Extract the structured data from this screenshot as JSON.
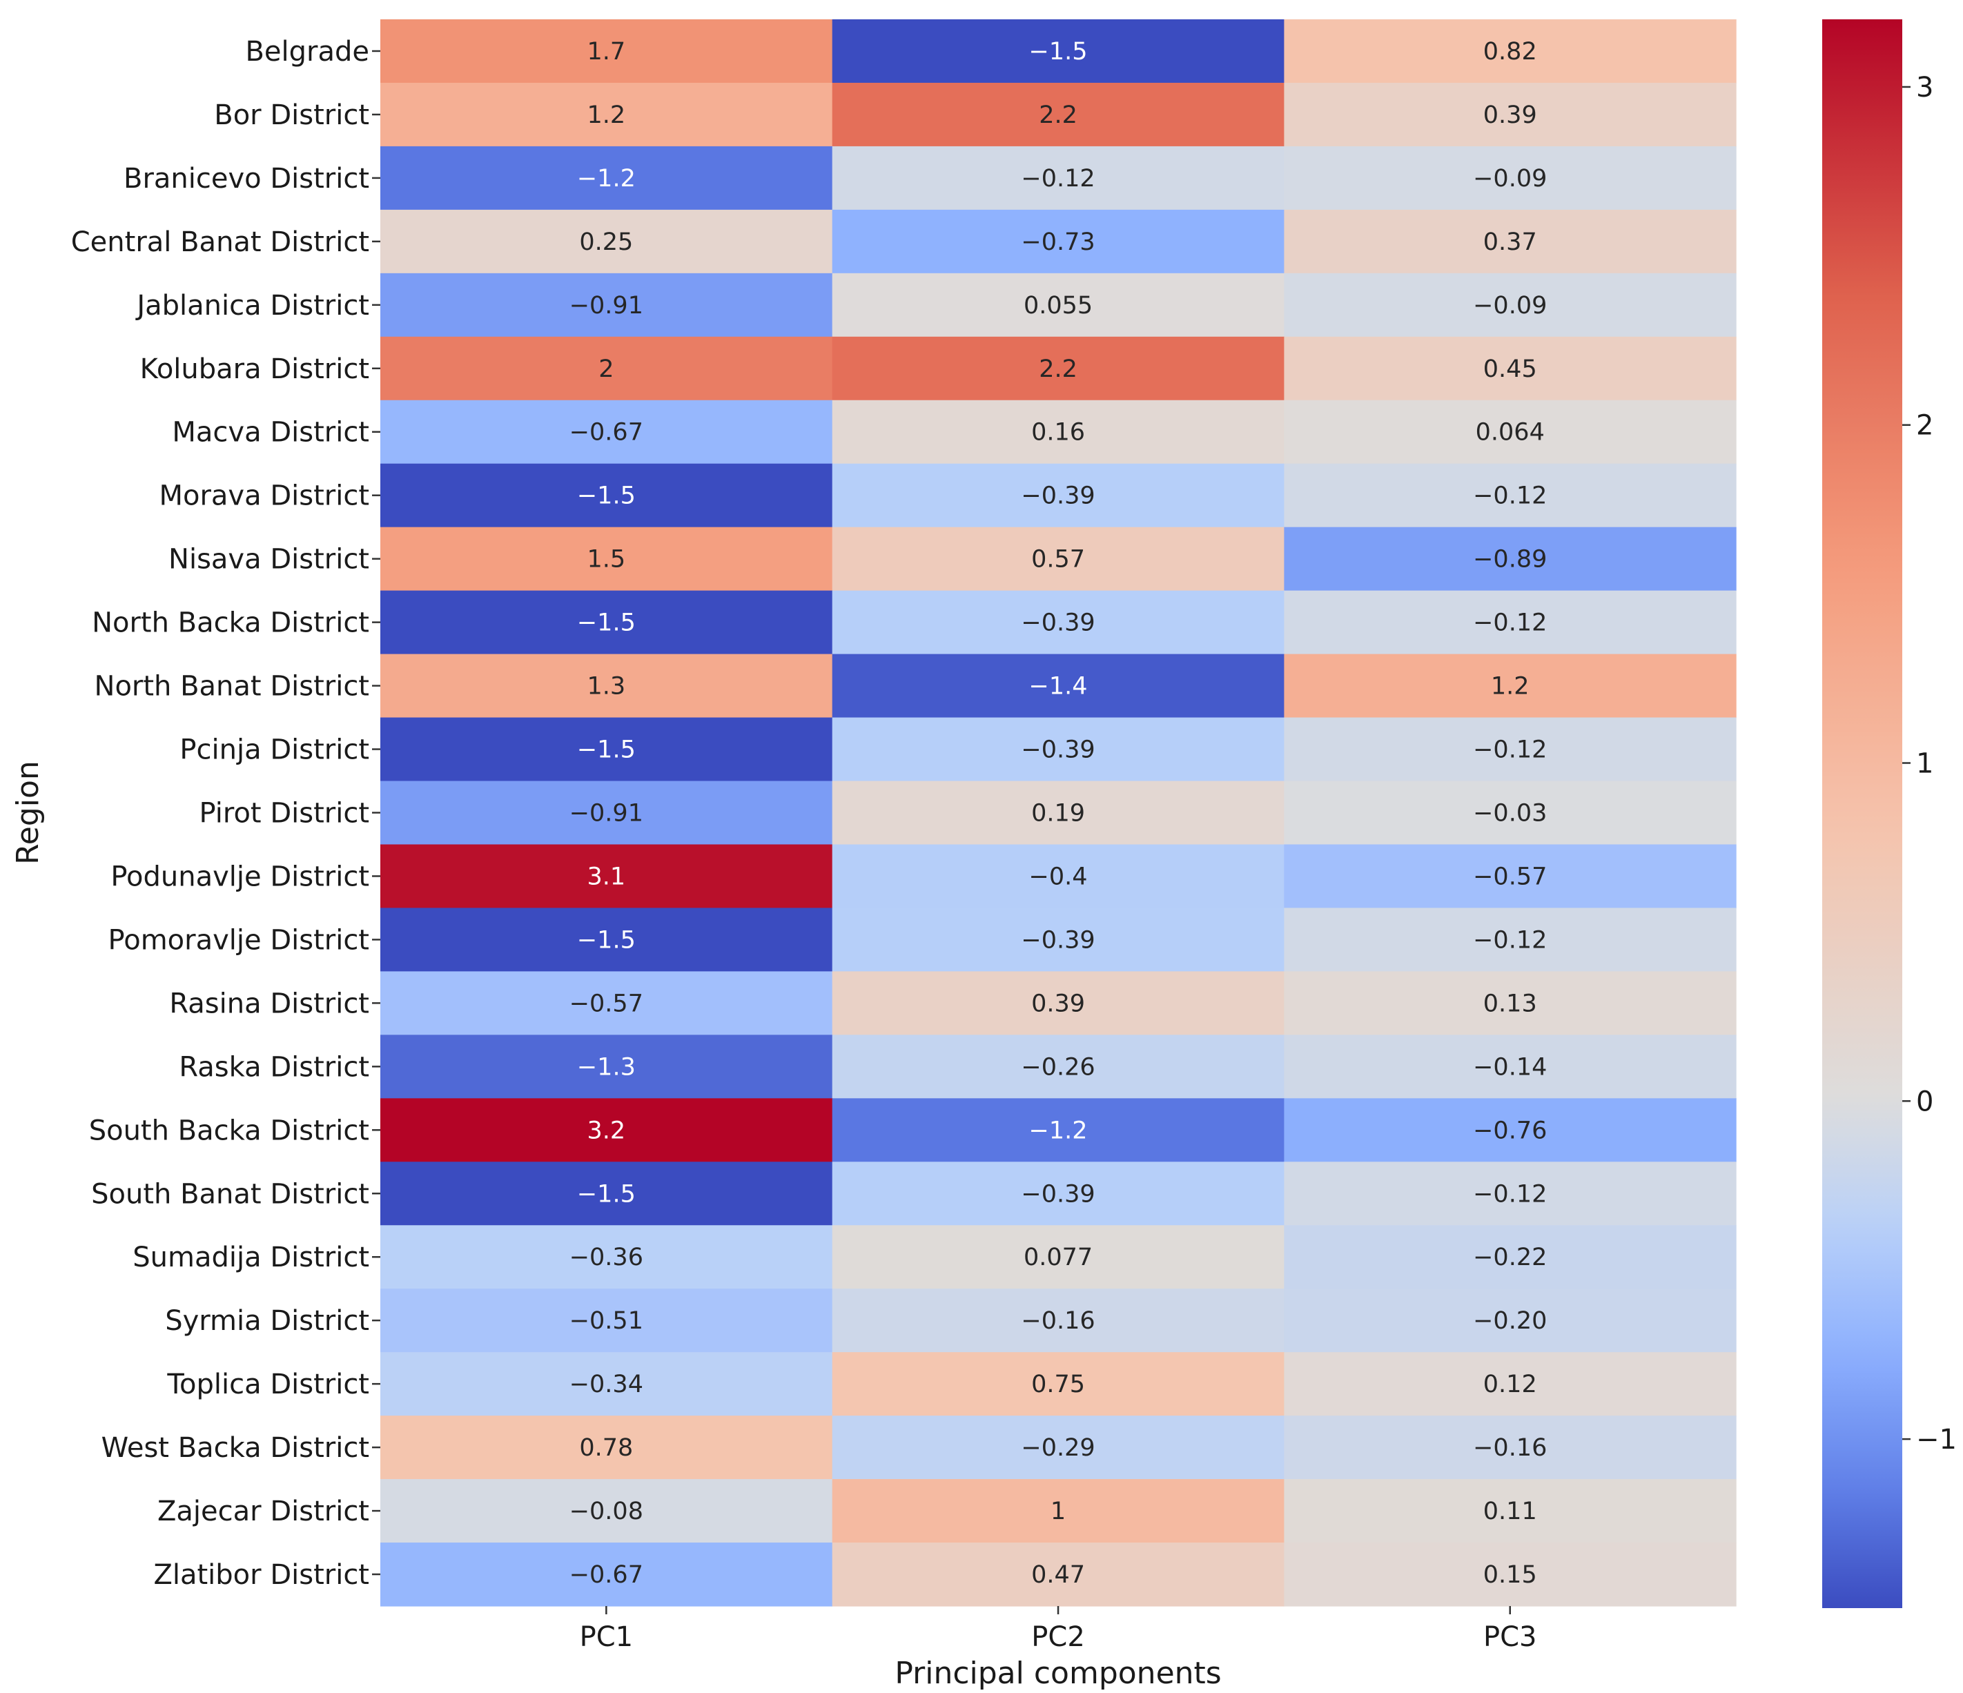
{
  "chart_data": {
    "type": "heatmap",
    "title": "",
    "xlabel": "Principal components",
    "ylabel": "Region",
    "columns": [
      "PC1",
      "PC2",
      "PC3"
    ],
    "rows": [
      "Belgrade",
      "Bor District",
      "Branicevo District",
      "Central Banat District",
      "Jablanica District",
      "Kolubara District",
      "Macva District",
      "Morava District",
      "Nisava District",
      "North Backa District",
      "North Banat District",
      "Pcinja District",
      "Pirot District",
      "Podunavlje District",
      "Pomoravlje District",
      "Rasina District",
      "Raska District",
      "South Backa District",
      "South Banat District",
      "Sumadija District",
      "Syrmia District",
      "Toplica District",
      "West Backa District",
      "Zajecar District",
      "Zlatibor District"
    ],
    "values": [
      [
        1.7,
        -1.5,
        0.82
      ],
      [
        1.2,
        2.2,
        0.39
      ],
      [
        -1.2,
        -0.12,
        -0.09
      ],
      [
        0.25,
        -0.73,
        0.37
      ],
      [
        -0.91,
        0.055,
        -0.09
      ],
      [
        2,
        2.2,
        0.45
      ],
      [
        -0.67,
        0.16,
        0.064
      ],
      [
        -1.5,
        -0.39,
        -0.12
      ],
      [
        1.5,
        0.57,
        -0.89
      ],
      [
        -1.5,
        -0.39,
        -0.12
      ],
      [
        1.3,
        -1.4,
        1.2
      ],
      [
        -1.5,
        -0.39,
        -0.12
      ],
      [
        -0.91,
        0.19,
        -0.03
      ],
      [
        3.1,
        -0.4,
        -0.57
      ],
      [
        -1.5,
        -0.39,
        -0.12
      ],
      [
        -0.57,
        0.39,
        0.13
      ],
      [
        -1.3,
        -0.26,
        -0.14
      ],
      [
        3.2,
        -1.2,
        -0.76
      ],
      [
        -1.5,
        -0.39,
        -0.12
      ],
      [
        -0.36,
        0.077,
        -0.22
      ],
      [
        -0.51,
        -0.16,
        -0.2
      ],
      [
        -0.34,
        0.75,
        0.12
      ],
      [
        0.78,
        -0.29,
        -0.16
      ],
      [
        -0.08,
        1,
        0.11
      ],
      [
        -0.67,
        0.47,
        0.15
      ]
    ],
    "annotations": [
      [
        "1.7",
        "−1.5",
        "0.82"
      ],
      [
        "1.2",
        "2.2",
        "0.39"
      ],
      [
        "−1.2",
        "−0.12",
        "−0.09"
      ],
      [
        "0.25",
        "−0.73",
        "0.37"
      ],
      [
        "−0.91",
        "0.055",
        "−0.09"
      ],
      [
        "2",
        "2.2",
        "0.45"
      ],
      [
        "−0.67",
        "0.16",
        "0.064"
      ],
      [
        "−1.5",
        "−0.39",
        "−0.12"
      ],
      [
        "1.5",
        "0.57",
        "−0.89"
      ],
      [
        "−1.5",
        "−0.39",
        "−0.12"
      ],
      [
        "1.3",
        "−1.4",
        "1.2"
      ],
      [
        "−1.5",
        "−0.39",
        "−0.12"
      ],
      [
        "−0.91",
        "0.19",
        "−0.03"
      ],
      [
        "3.1",
        "−0.4",
        "−0.57"
      ],
      [
        "−1.5",
        "−0.39",
        "−0.12"
      ],
      [
        "−0.57",
        "0.39",
        "0.13"
      ],
      [
        "−1.3",
        "−0.26",
        "−0.14"
      ],
      [
        "3.2",
        "−1.2",
        "−0.76"
      ],
      [
        "−1.5",
        "−0.39",
        "−0.12"
      ],
      [
        "−0.36",
        "0.077",
        "−0.22"
      ],
      [
        "−0.51",
        "−0.16",
        "−0.20"
      ],
      [
        "−0.34",
        "0.75",
        "0.12"
      ],
      [
        "0.78",
        "−0.29",
        "−0.16"
      ],
      [
        "−0.08",
        "1",
        "0.11"
      ],
      [
        "−0.67",
        "0.47",
        "0.15"
      ]
    ],
    "colorbar": {
      "colormap": "coolwarm",
      "vmin": -1.5,
      "vmax": 3.2,
      "ticks": [
        -1,
        0,
        1,
        2,
        3
      ],
      "tick_labels": [
        "−1",
        "0",
        "1",
        "2",
        "3"
      ]
    }
  }
}
